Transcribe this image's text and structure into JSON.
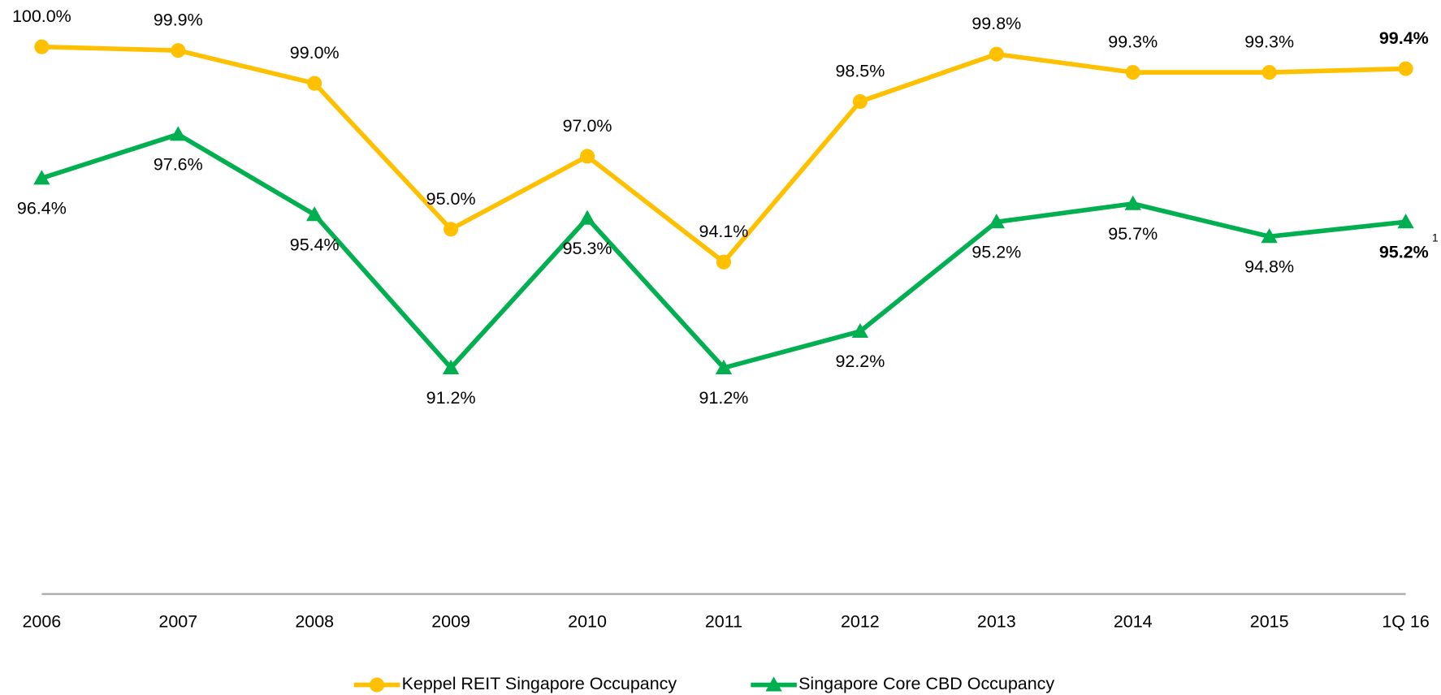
{
  "chart_data": {
    "type": "line",
    "categories": [
      "2006",
      "2007",
      "2008",
      "2009",
      "2010",
      "2011",
      "2012",
      "2013",
      "2014",
      "2015",
      "1Q 16"
    ],
    "series": [
      {
        "name": "Keppel REIT Singapore Occupancy",
        "color": "#FFC000",
        "marker": "circle",
        "values": [
          100.0,
          99.9,
          99.0,
          95.0,
          97.0,
          94.1,
          98.5,
          99.8,
          99.3,
          99.3,
          99.4
        ],
        "value_labels": [
          "100.0%",
          "99.9%",
          "99.0%",
          "95.0%",
          "97.0%",
          "94.1%",
          "98.5%",
          "99.8%",
          "99.3%",
          "99.3%",
          "99.4%"
        ]
      },
      {
        "name": "Singapore Core CBD Occupancy",
        "color": "#00B050",
        "marker": "triangle",
        "values": [
          96.4,
          97.6,
          95.4,
          91.2,
          95.3,
          91.2,
          92.2,
          95.2,
          95.7,
          94.8,
          95.2
        ],
        "value_labels": [
          "96.4%",
          "97.6%",
          "95.4%",
          "91.2%",
          "95.3%",
          "91.2%",
          "92.2%",
          "95.2%",
          "95.7%",
          "94.8%",
          "95.2%"
        ]
      }
    ],
    "annotations": [
      "1"
    ],
    "ylim": [
      85,
      100
    ],
    "legend": "bottom"
  }
}
